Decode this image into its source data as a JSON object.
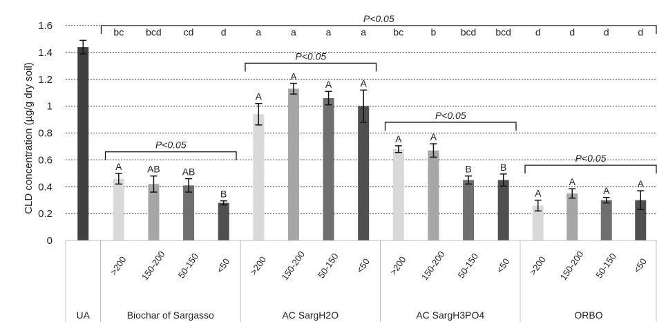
{
  "chart_data": {
    "type": "bar",
    "ylabel": "CLD concentration (µg/g dry soil)",
    "ylim": [
      0,
      1.6
    ],
    "yticks": [
      "0",
      "0.2",
      "0.4",
      "0.6",
      "0.8",
      "1",
      "1.2",
      "1.4",
      "1.6"
    ],
    "grid": "horizontal dotted",
    "groups": [
      {
        "name": "UA",
        "categories": [
          ""
        ],
        "values": [
          1.44
        ],
        "errors": [
          0.05
        ],
        "group_letters": [
          ""
        ],
        "letters": [
          ""
        ],
        "colors": [
          "#404040"
        ]
      },
      {
        "name": "Biochar of Sargasso",
        "categories": [
          ">200",
          "150-200",
          "50-150",
          "<50"
        ],
        "values": [
          0.46,
          0.42,
          0.41,
          0.28
        ],
        "errors": [
          0.04,
          0.06,
          0.05,
          0.015
        ],
        "group_letters": [
          "bc",
          "bcd",
          "cd",
          "d"
        ],
        "letters": [
          "A",
          "AB",
          "AB",
          "B"
        ],
        "colors": [
          "#d9d9d9",
          "#a6a6a6",
          "#6f6f6f",
          "#4f4f4f"
        ]
      },
      {
        "name": "AC SargH2O",
        "categories": [
          ">200",
          "150-200",
          "50-150",
          "<50"
        ],
        "values": [
          0.94,
          1.13,
          1.06,
          1.0
        ],
        "errors": [
          0.08,
          0.04,
          0.05,
          0.12
        ],
        "group_letters": [
          "a",
          "a",
          "a",
          "a"
        ],
        "letters": [
          "A",
          "A",
          "A",
          "A"
        ],
        "colors": [
          "#d9d9d9",
          "#a6a6a6",
          "#6f6f6f",
          "#4f4f4f"
        ]
      },
      {
        "name": "AC SargH3PO4",
        "categories": [
          ">200",
          "150-200",
          "50-150",
          "<50"
        ],
        "values": [
          0.68,
          0.67,
          0.45,
          0.45
        ],
        "errors": [
          0.025,
          0.05,
          0.03,
          0.045
        ],
        "group_letters": [
          "bc",
          "b",
          "bcd",
          "bcd"
        ],
        "letters": [
          "A",
          "A",
          "B",
          "B"
        ],
        "colors": [
          "#d9d9d9",
          "#a6a6a6",
          "#6f6f6f",
          "#4f4f4f"
        ]
      },
      {
        "name": "ORBO",
        "categories": [
          ">200",
          "150-200",
          "50-150",
          "<50"
        ],
        "values": [
          0.26,
          0.35,
          0.3,
          0.3
        ],
        "errors": [
          0.04,
          0.035,
          0.02,
          0.07
        ],
        "group_letters": [
          "d",
          "d",
          "d",
          "d"
        ],
        "letters": [
          "A",
          "A",
          "A",
          "A"
        ],
        "colors": [
          "#d9d9d9",
          "#a6a6a6",
          "#6f6f6f",
          "#4f4f4f"
        ]
      }
    ],
    "brackets": [
      {
        "label": "P<0.05",
        "span": "all treatments",
        "level": 1.6
      },
      {
        "label": "P<0.05",
        "span": "Biochar of Sargasso",
        "level": 0.66
      },
      {
        "label": "P<0.05",
        "span": "AC SargH2O",
        "level": 1.32
      },
      {
        "label": "P<0.05",
        "span": "AC SargH3PO4",
        "level": 0.88
      },
      {
        "label": "P<0.05",
        "span": "ORBO",
        "level": 0.56
      }
    ]
  }
}
